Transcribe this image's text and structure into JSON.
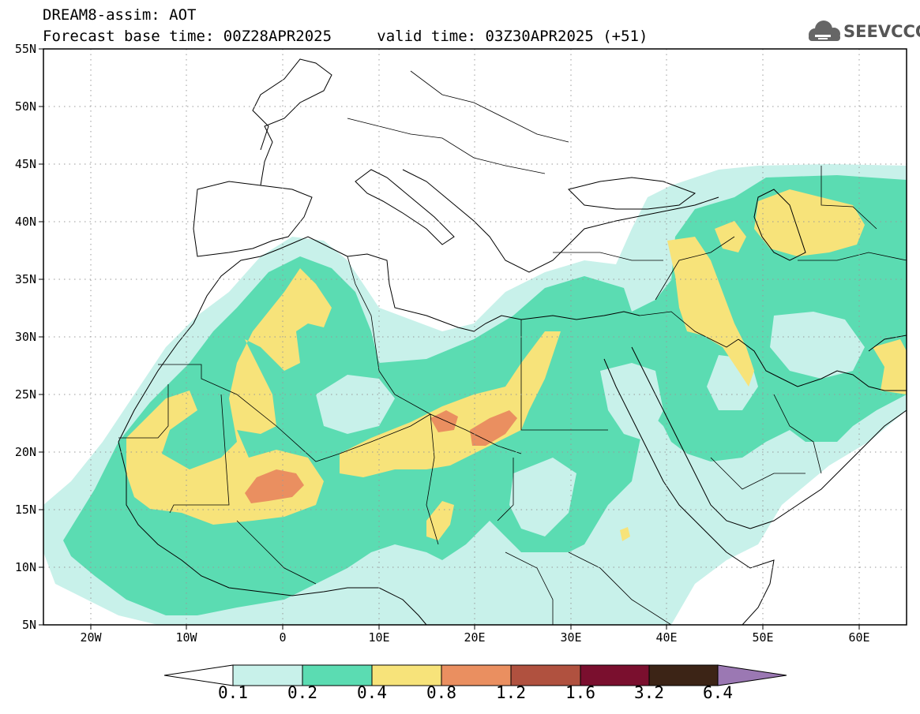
{
  "header": {
    "title": "DREAM8-assim: AOT",
    "base_time_label": "Forecast base time: 00Z28APR2025",
    "valid_time_label": "valid time: 03Z30APR2025 (+51)"
  },
  "logo": {
    "text": "SEEVCCC",
    "icon": "cloud-icon"
  },
  "map": {
    "lat_labels": [
      "55N",
      "50N",
      "45N",
      "40N",
      "35N",
      "30N",
      "25N",
      "20N",
      "15N",
      "10N",
      "5N"
    ],
    "lon_labels": [
      "20W",
      "10W",
      "0",
      "10E",
      "20E",
      "30E",
      "40E",
      "50E",
      "60E"
    ],
    "grid": true
  },
  "colorbar": {
    "levels": [
      "0.1",
      "0.2",
      "0.4",
      "0.8",
      "1.2",
      "1.6",
      "3.2",
      "6.4"
    ],
    "colors": [
      "#c8f1ea",
      "#5bdcb2",
      "#f7e37a",
      "#ea8f60",
      "#b0513f",
      "#7a0f2e",
      "#3c2416",
      "#9b78b3"
    ]
  }
}
